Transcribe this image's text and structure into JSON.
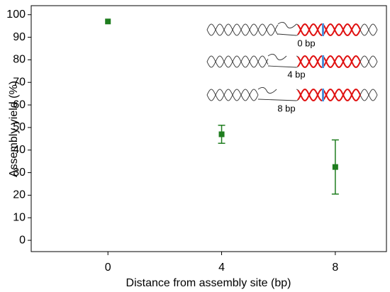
{
  "chart_data": {
    "type": "scatter",
    "x_label": "Distance from assembly site (bp)",
    "y_label": "Assembly yield (%)",
    "x": [
      0,
      4,
      8
    ],
    "series": [
      {
        "color": "#1e7d1e",
        "values": [
          97,
          47,
          32.5
        ],
        "errors": [
          null,
          4,
          12
        ]
      }
    ],
    "xlim": [
      -2.7,
      9.8
    ],
    "xticks": [
      0,
      4,
      8
    ],
    "ylim": [
      -5,
      104
    ],
    "yticks": [
      0,
      10,
      20,
      30,
      40,
      50,
      60,
      70,
      80,
      90,
      100
    ],
    "annotations": [
      "0 bp",
      "4 bp",
      "8 bp"
    ]
  }
}
